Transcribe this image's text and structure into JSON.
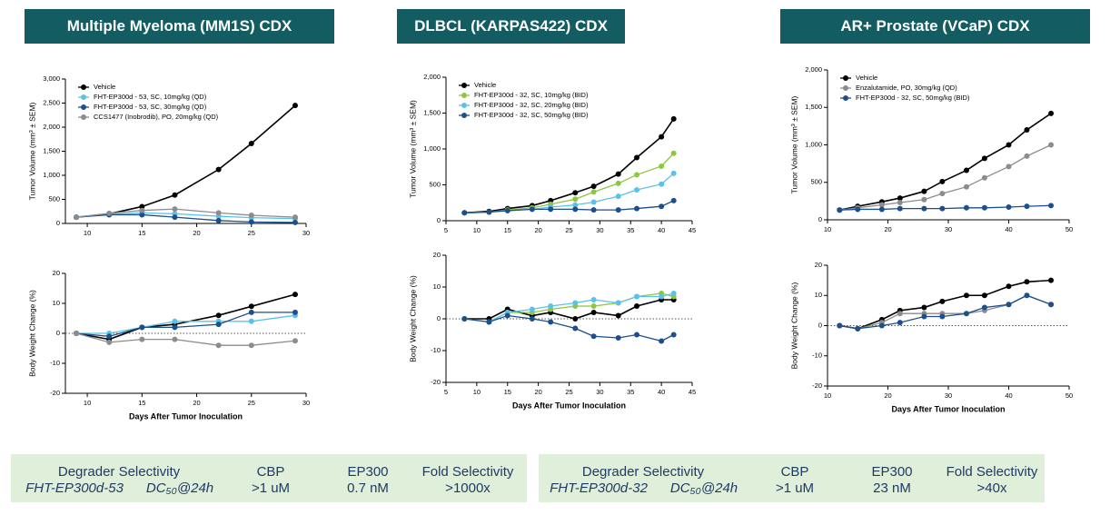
{
  "headers": [
    "Multiple Myeloma (MM1S) CDX",
    "DLBCL (KARPAS422) CDX",
    "AR+ Prostate (VCaP) CDX"
  ],
  "chart_data": [
    {
      "type": "line",
      "ylabel": "Tumor Volume (mm³ ± SEM)",
      "legend": "upper left",
      "x": [
        9,
        12,
        15,
        18,
        22,
        25,
        29
      ],
      "xlim": [
        8,
        30
      ],
      "xticks": [
        10,
        15,
        20,
        25,
        30
      ],
      "ylim": [
        0,
        3000
      ],
      "yticks": [
        0,
        500,
        {
          "value": 1000,
          "label": "1,000"
        },
        {
          "value": 1500,
          "label": "1,500"
        },
        {
          "value": 2000,
          "label": "2,000"
        },
        {
          "value": 2500,
          "label": "2,500"
        },
        {
          "value": 3000,
          "label": "3,000"
        }
      ],
      "series": [
        {
          "name": "Vehicle",
          "color": "#000000",
          "values": [
            130,
            200,
            350,
            590,
            1120,
            1660,
            2450
          ]
        },
        {
          "name": "FHT-EP300d - 53, SC, 10mg/kg (QD)",
          "color": "#5bc2e7",
          "values": [
            130,
            190,
            220,
            200,
            150,
            120,
            100
          ]
        },
        {
          "name": "FHT-EP300d - 53, SC, 30mg/kg (QD)",
          "color": "#1c4f8c",
          "values": [
            130,
            180,
            180,
            130,
            60,
            30,
            20
          ]
        },
        {
          "name": "CCS1477 (Inobrodib), PO, 20mg/kg (QD)",
          "color": "#8c8c8c",
          "values": [
            130,
            210,
            270,
            300,
            220,
            170,
            130
          ]
        }
      ]
    },
    {
      "type": "line",
      "ylabel": "Body Weight Change (%)",
      "xlabel": "Days After Tumor Inoculation",
      "x": [
        9,
        12,
        15,
        18,
        22,
        25,
        29
      ],
      "xlim": [
        8,
        30
      ],
      "xticks": [
        10,
        15,
        20,
        25,
        30
      ],
      "ylim": [
        -20,
        20
      ],
      "yticks": [
        -20,
        -10,
        0,
        10,
        20
      ],
      "series": [
        {
          "color": "#000000",
          "values": [
            0,
            -2,
            2,
            3,
            6,
            9,
            13
          ]
        },
        {
          "color": "#5bc2e7",
          "values": [
            0,
            0,
            2,
            4,
            4,
            4,
            6
          ]
        },
        {
          "color": "#1c4f8c",
          "values": [
            0,
            -1,
            2,
            2,
            3,
            7,
            7
          ]
        },
        {
          "color": "#8c8c8c",
          "values": [
            0,
            -3,
            -2,
            -2,
            -4,
            -4,
            -2.5
          ]
        }
      ]
    },
    {
      "type": "line",
      "ylabel": "Tumor Volume (mm³ ± SEM)",
      "legend": "upper left",
      "x": [
        8,
        12,
        15,
        19,
        22,
        26,
        29,
        33,
        36,
        40,
        42
      ],
      "xlim": [
        5,
        45
      ],
      "xticks": [
        5,
        10,
        15,
        20,
        25,
        30,
        35,
        40,
        45
      ],
      "ylim": [
        0,
        2000
      ],
      "yticks": [
        0,
        500,
        {
          "value": 1000,
          "label": "1,000"
        },
        {
          "value": 1500,
          "label": "1,500"
        },
        {
          "value": 2000,
          "label": "2,000"
        }
      ],
      "series": [
        {
          "name": "Vehicle",
          "color": "#000000",
          "values": [
            110,
            130,
            170,
            210,
            280,
            390,
            480,
            650,
            880,
            1170,
            1420
          ]
        },
        {
          "name": "FHT-EP300d - 32, SC, 10mg/kg (BID)",
          "color": "#8dc63f",
          "values": [
            110,
            120,
            150,
            180,
            230,
            300,
            400,
            520,
            640,
            760,
            940
          ]
        },
        {
          "name": "FHT-EP300d - 32, SC, 20mg/kg (BID)",
          "color": "#5bc2e7",
          "values": [
            110,
            120,
            140,
            160,
            190,
            220,
            260,
            340,
            430,
            510,
            660
          ]
        },
        {
          "name": "FHT-EP300d - 32, SC, 50mg/kg (BID)",
          "color": "#1c4f8c",
          "values": [
            110,
            120,
            140,
            160,
            160,
            160,
            150,
            150,
            170,
            200,
            280
          ]
        }
      ]
    },
    {
      "type": "line",
      "ylabel": "Body Weight Change (%)",
      "xlabel": "Days After Tumor Inoculation",
      "x": [
        8,
        12,
        15,
        19,
        22,
        26,
        29,
        33,
        36,
        40,
        42
      ],
      "xlim": [
        5,
        45
      ],
      "xticks": [
        5,
        10,
        15,
        20,
        25,
        30,
        35,
        40,
        45
      ],
      "ylim": [
        -20,
        20
      ],
      "yticks": [
        -20,
        -10,
        0,
        10,
        20
      ],
      "series": [
        {
          "color": "#000000",
          "values": [
            0,
            0,
            3,
            1,
            2,
            0,
            2,
            1,
            4,
            6,
            6
          ]
        },
        {
          "color": "#8dc63f",
          "values": [
            0,
            -1,
            2,
            2,
            3,
            4,
            4,
            5,
            7,
            8,
            7
          ]
        },
        {
          "color": "#5bc2e7",
          "values": [
            0,
            -1,
            2,
            3,
            4,
            5,
            6,
            5,
            7,
            7,
            8
          ]
        },
        {
          "color": "#1c4f8c",
          "values": [
            0,
            -1,
            1,
            0,
            -1,
            -3,
            -5.5,
            -6,
            -5,
            -7,
            -5
          ]
        }
      ]
    },
    {
      "type": "line",
      "ylabel": "Tumor Volume (mm³ ± SEM)",
      "legend": "upper left",
      "x": [
        12,
        15,
        19,
        22,
        26,
        29,
        33,
        36,
        40,
        43,
        47
      ],
      "xlim": [
        10,
        50
      ],
      "xticks": [
        10,
        20,
        30,
        40,
        50
      ],
      "ylim": [
        0,
        2000
      ],
      "yticks": [
        0,
        500,
        {
          "value": 1000,
          "label": "1,000"
        },
        {
          "value": 1500,
          "label": "1,500"
        },
        {
          "value": 2000,
          "label": "2,000"
        }
      ],
      "series": [
        {
          "name": "Vehicle",
          "color": "#000000",
          "values": [
            130,
            180,
            240,
            290,
            380,
            510,
            660,
            820,
            1000,
            1200,
            1420
          ]
        },
        {
          "name": "Enzalutamide, PO, 30mg/kg (QD)",
          "color": "#8c8c8c",
          "values": [
            130,
            160,
            200,
            230,
            270,
            350,
            440,
            560,
            710,
            850,
            1000
          ]
        },
        {
          "name": "FHT-EP300d - 32, SC, 50mg/kg (BID)",
          "color": "#1c4f8c",
          "values": [
            130,
            140,
            140,
            150,
            150,
            150,
            160,
            160,
            170,
            180,
            190
          ]
        }
      ]
    },
    {
      "type": "line",
      "ylabel": "Body Weight Change (%)",
      "xlabel": "Days After Tumor Inoculation",
      "x": [
        12,
        15,
        19,
        22,
        26,
        29,
        33,
        36,
        40,
        43,
        47
      ],
      "xlim": [
        10,
        50
      ],
      "xticks": [
        10,
        20,
        30,
        40,
        50
      ],
      "ylim": [
        -20,
        20
      ],
      "yticks": [
        -20,
        -10,
        0,
        10,
        20
      ],
      "series": [
        {
          "color": "#000000",
          "values": [
            0,
            -1,
            2,
            5,
            6,
            8,
            10,
            10,
            13,
            14.5,
            15
          ]
        },
        {
          "color": "#8c8c8c",
          "values": [
            0,
            -1,
            1,
            4,
            4,
            4,
            4,
            5,
            7,
            10,
            7
          ]
        },
        {
          "color": "#1c4f8c",
          "values": [
            0,
            -1,
            0,
            1,
            3,
            3,
            4,
            6,
            7,
            10,
            7
          ]
        }
      ]
    }
  ],
  "tables": [
    {
      "rows": [
        [
          "Degrader Selectivity",
          "CBP",
          "EP300",
          "Fold Selectivity"
        ],
        [
          "FHT-EP300d-53",
          "DC₅₀@24h",
          ">1 uM",
          "0.7 nM",
          ">1000x"
        ]
      ]
    },
    {
      "rows": [
        [
          "Degrader Selectivity",
          "CBP",
          "EP300",
          "Fold Selectivity"
        ],
        [
          "FHT-EP300d-32",
          "DC₅₀@24h",
          ">1 uM",
          "23 nM",
          ">40x"
        ]
      ]
    }
  ]
}
